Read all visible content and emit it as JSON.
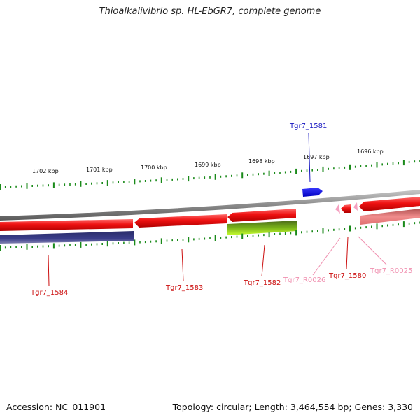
{
  "title": "Thioalkalivibrio sp. HL-EbGR7, complete genome",
  "accession": "Accession: NC_011901",
  "summary": "Topology: circular; Length: 3,464,554 bp; Genes: 3,330",
  "colors": {
    "backbone": "#8a8a8a",
    "cds": "#e8141c",
    "cds_light": "#f08080",
    "gc_dark": "#3a3d8a",
    "gc_green": "#8ad61c",
    "rna": "#f5a0c0",
    "blue_feature": "#1515e0",
    "tick": "#1a8a1a"
  },
  "scale": {
    "top_ticks": [
      "1702 kbp",
      "1701 kbp",
      "1700 kbp",
      "1699 kbp",
      "1698 kbp",
      "1697 kbp",
      "1696 kbp"
    ]
  },
  "genes": [
    {
      "label": "Tgr7_1581",
      "color": "#1515c0"
    },
    {
      "label": "Tgr7_1584",
      "color": "#cc1010"
    },
    {
      "label": "Tgr7_1583",
      "color": "#cc1010"
    },
    {
      "label": "Tgr7_1582",
      "color": "#cc1010"
    },
    {
      "label": "Tgr7_R0026",
      "color": "#f090b0"
    },
    {
      "label": "Tgr7_1580",
      "color": "#cc1010"
    },
    {
      "label": "Tgr7_R0025",
      "color": "#f090b0"
    }
  ]
}
